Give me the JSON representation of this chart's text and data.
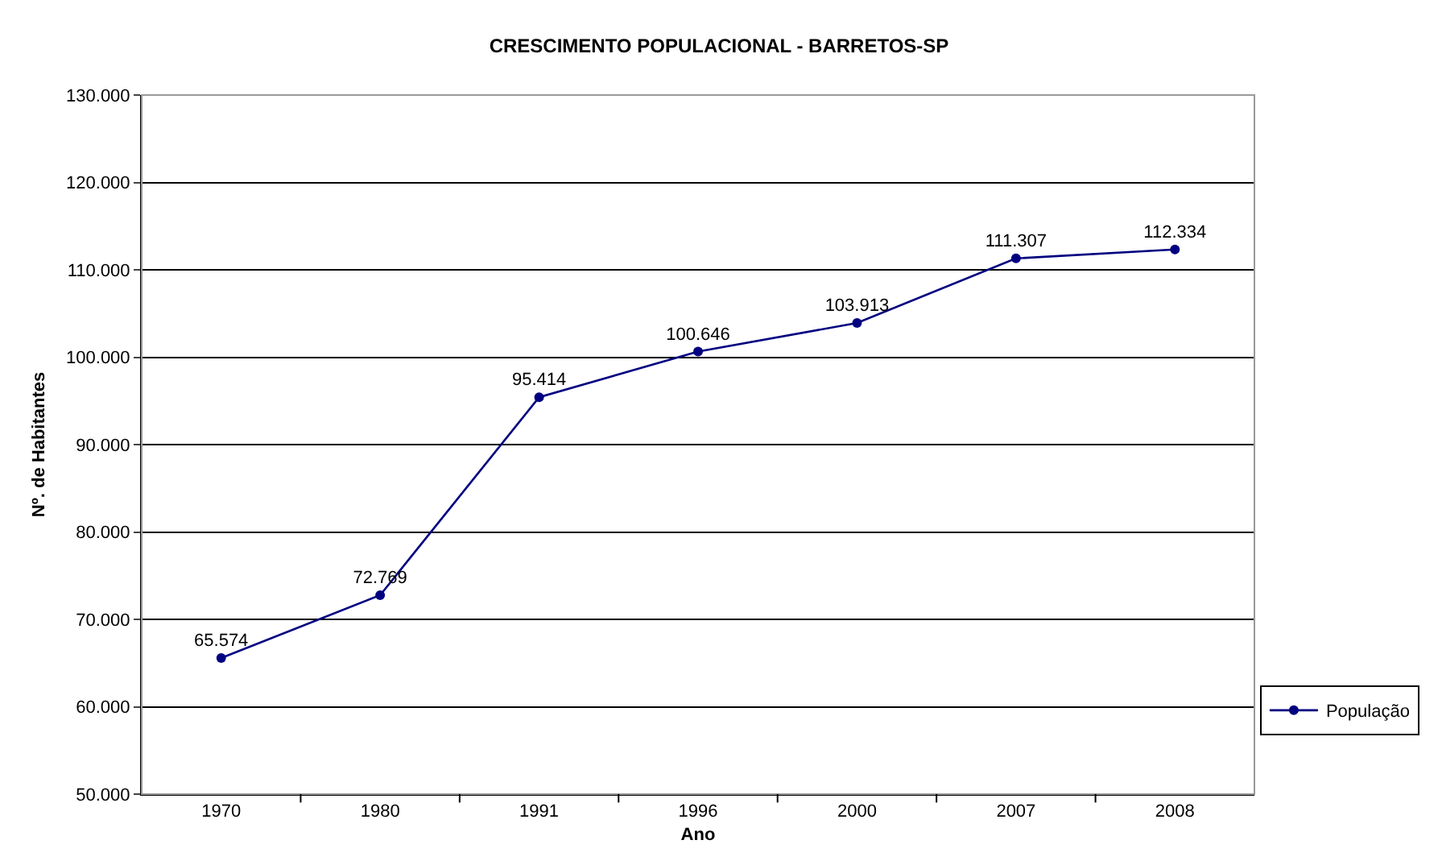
{
  "chart_data": {
    "type": "line",
    "title": "CRESCIMENTO POPULACIONAL - BARRETOS-SP",
    "xlabel": "Ano",
    "ylabel": "Nº. de Habitantes",
    "categories": [
      "1970",
      "1980",
      "1991",
      "1996",
      "2000",
      "2007",
      "2008"
    ],
    "series": [
      {
        "name": "População",
        "color": "#000080",
        "values": [
          65574,
          72769,
          95414,
          100646,
          103913,
          111307,
          112334
        ],
        "value_labels": [
          "65.574",
          "72.769",
          "95.414",
          "100.646",
          "103.913",
          "111.307",
          "112.334"
        ]
      }
    ],
    "ylim": [
      50000,
      130000
    ],
    "yticks": [
      {
        "value": 50000,
        "label": "50.000"
      },
      {
        "value": 60000,
        "label": "60.000"
      },
      {
        "value": 70000,
        "label": "70.000"
      },
      {
        "value": 80000,
        "label": "80.000"
      },
      {
        "value": 90000,
        "label": "90.000"
      },
      {
        "value": 100000,
        "label": "100.000"
      },
      {
        "value": 110000,
        "label": "110.000"
      },
      {
        "value": 120000,
        "label": "120.000"
      },
      {
        "value": 130000,
        "label": "130.000"
      }
    ],
    "grid": "y",
    "legend": "right",
    "marker": "circle",
    "line_style": "solid"
  }
}
